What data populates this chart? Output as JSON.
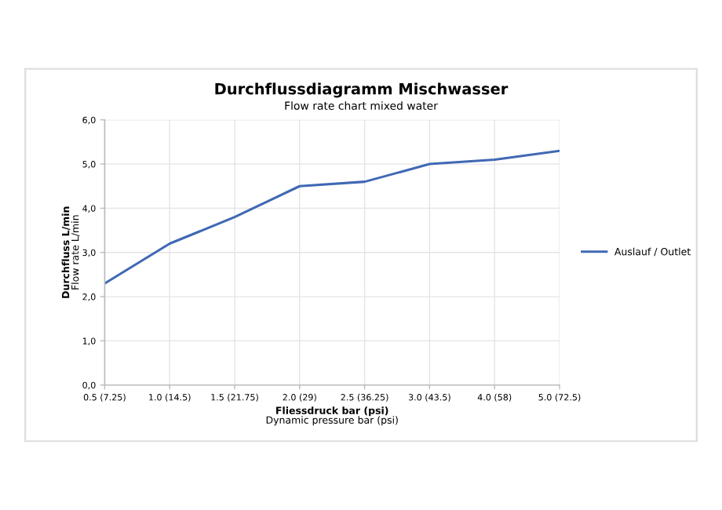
{
  "chart_data": {
    "type": "line",
    "title": "Durchflussdiagramm Mischwasser",
    "subtitle": "Flow rate chart mixed water",
    "xlabel": "Fliessdruck bar (psi)\nDynamic pressure bar (psi)",
    "ylabel": "Durchfluss L/min\nFlow rate L/min",
    "categories": [
      "0.5 (7.25)",
      "1.0 (14.5)",
      "1.5 (21.75)",
      "2.0 (29)",
      "2.5 (36.25)",
      "3.0 (43.5)",
      "4.0 (58)",
      "5.0 (72.5)"
    ],
    "series": [
      {
        "name": "Auslauf / Outlet",
        "color": "#4068b4",
        "values": [
          2.3,
          3.2,
          3.8,
          4.5,
          4.6,
          5.0,
          5.1,
          5.3
        ]
      }
    ],
    "ylim": [
      0,
      6
    ],
    "yticks": [
      {
        "value": 0,
        "label": "0,0"
      },
      {
        "value": 1,
        "label": "1,0"
      },
      {
        "value": 2,
        "label": "2,0"
      },
      {
        "value": 3,
        "label": "3,0"
      },
      {
        "value": 4,
        "label": "4,0"
      },
      {
        "value": 5,
        "label": "5,0"
      },
      {
        "value": 6,
        "label": "6,0"
      }
    ],
    "grid": true,
    "legend": "right",
    "marker": "none",
    "line_style": "solid"
  }
}
